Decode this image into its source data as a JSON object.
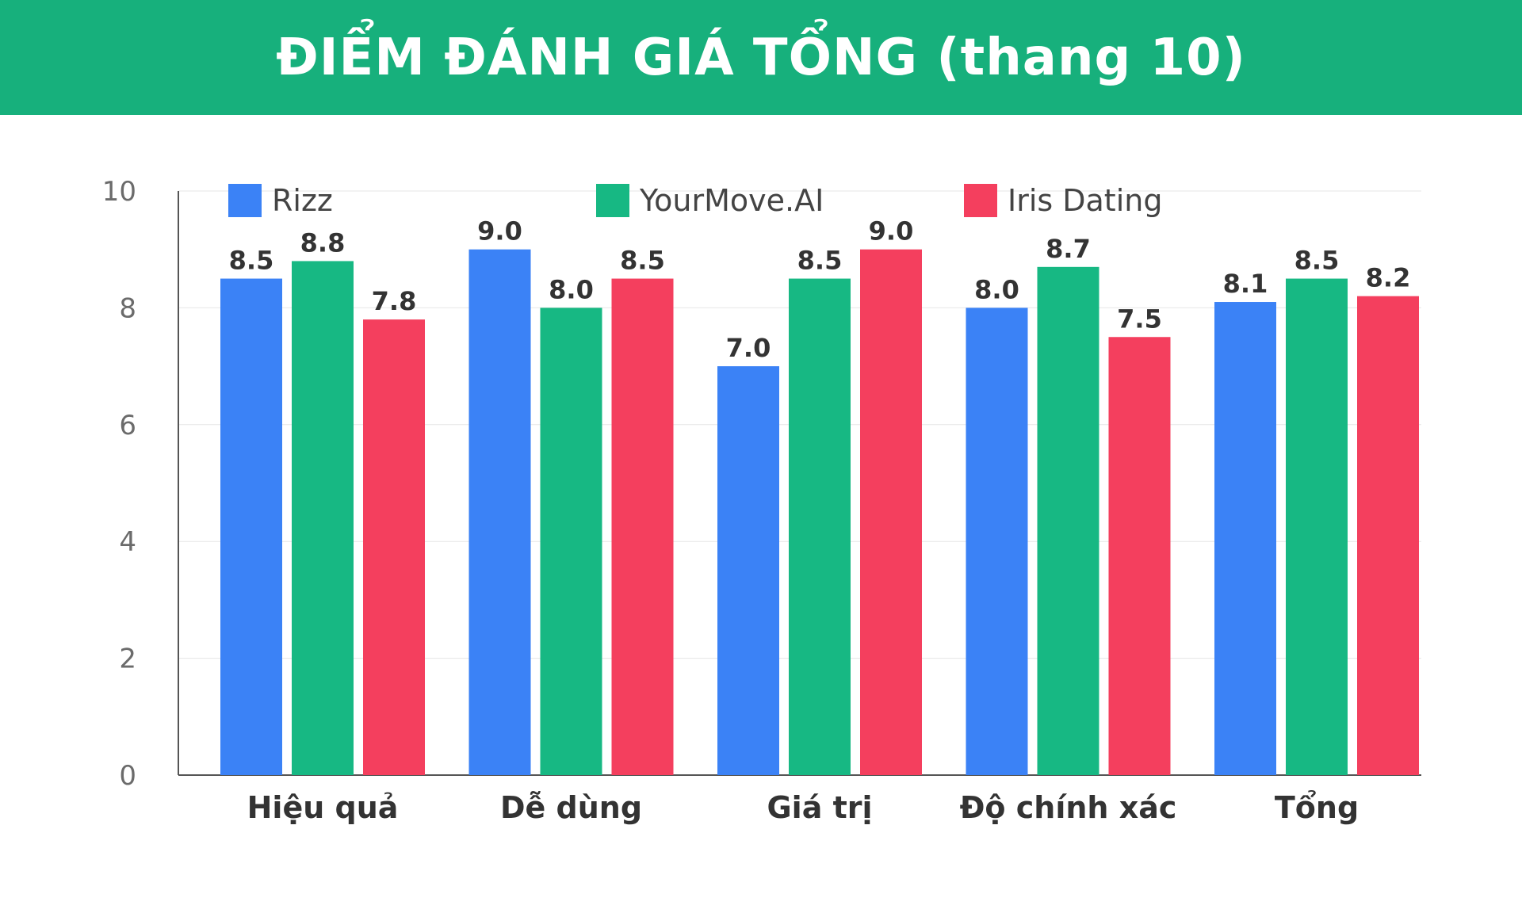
{
  "header": {
    "title": "ĐIỂM ĐÁNH GIÁ TỔNG (thang 10)",
    "background": "#17b07c"
  },
  "chart_data": {
    "type": "bar",
    "title": "ĐIỂM ĐÁNH GIÁ TỔNG (thang 10)",
    "xlabel": "",
    "ylabel": "",
    "categories": [
      "Hiệu quả",
      "Dễ dùng",
      "Giá trị",
      "Độ chính xác",
      "Tổng"
    ],
    "series": [
      {
        "name": "Rizz",
        "color": "#3b82f6",
        "values": [
          8.5,
          9.0,
          7.0,
          8.0,
          8.1
        ],
        "labels": [
          "8.5",
          "9.0",
          "7.0",
          "8.0",
          "8.1"
        ]
      },
      {
        "name": "YourMove.AI",
        "color": "#17b883",
        "values": [
          8.8,
          8.0,
          8.5,
          8.7,
          8.5
        ],
        "labels": [
          "8.8",
          "8.0",
          "8.5",
          "8.7",
          "8.5"
        ]
      },
      {
        "name": "Iris Dating",
        "color": "#f43f5e",
        "values": [
          7.8,
          8.5,
          9.0,
          7.5,
          8.2
        ],
        "labels": [
          "7.8",
          "8.5",
          "9.0",
          "7.5",
          "8.2"
        ]
      }
    ],
    "ylim": [
      0,
      10
    ],
    "yticks": [
      "0",
      "2",
      "4",
      "6",
      "8",
      "10"
    ],
    "grid": true,
    "legend": "top"
  }
}
